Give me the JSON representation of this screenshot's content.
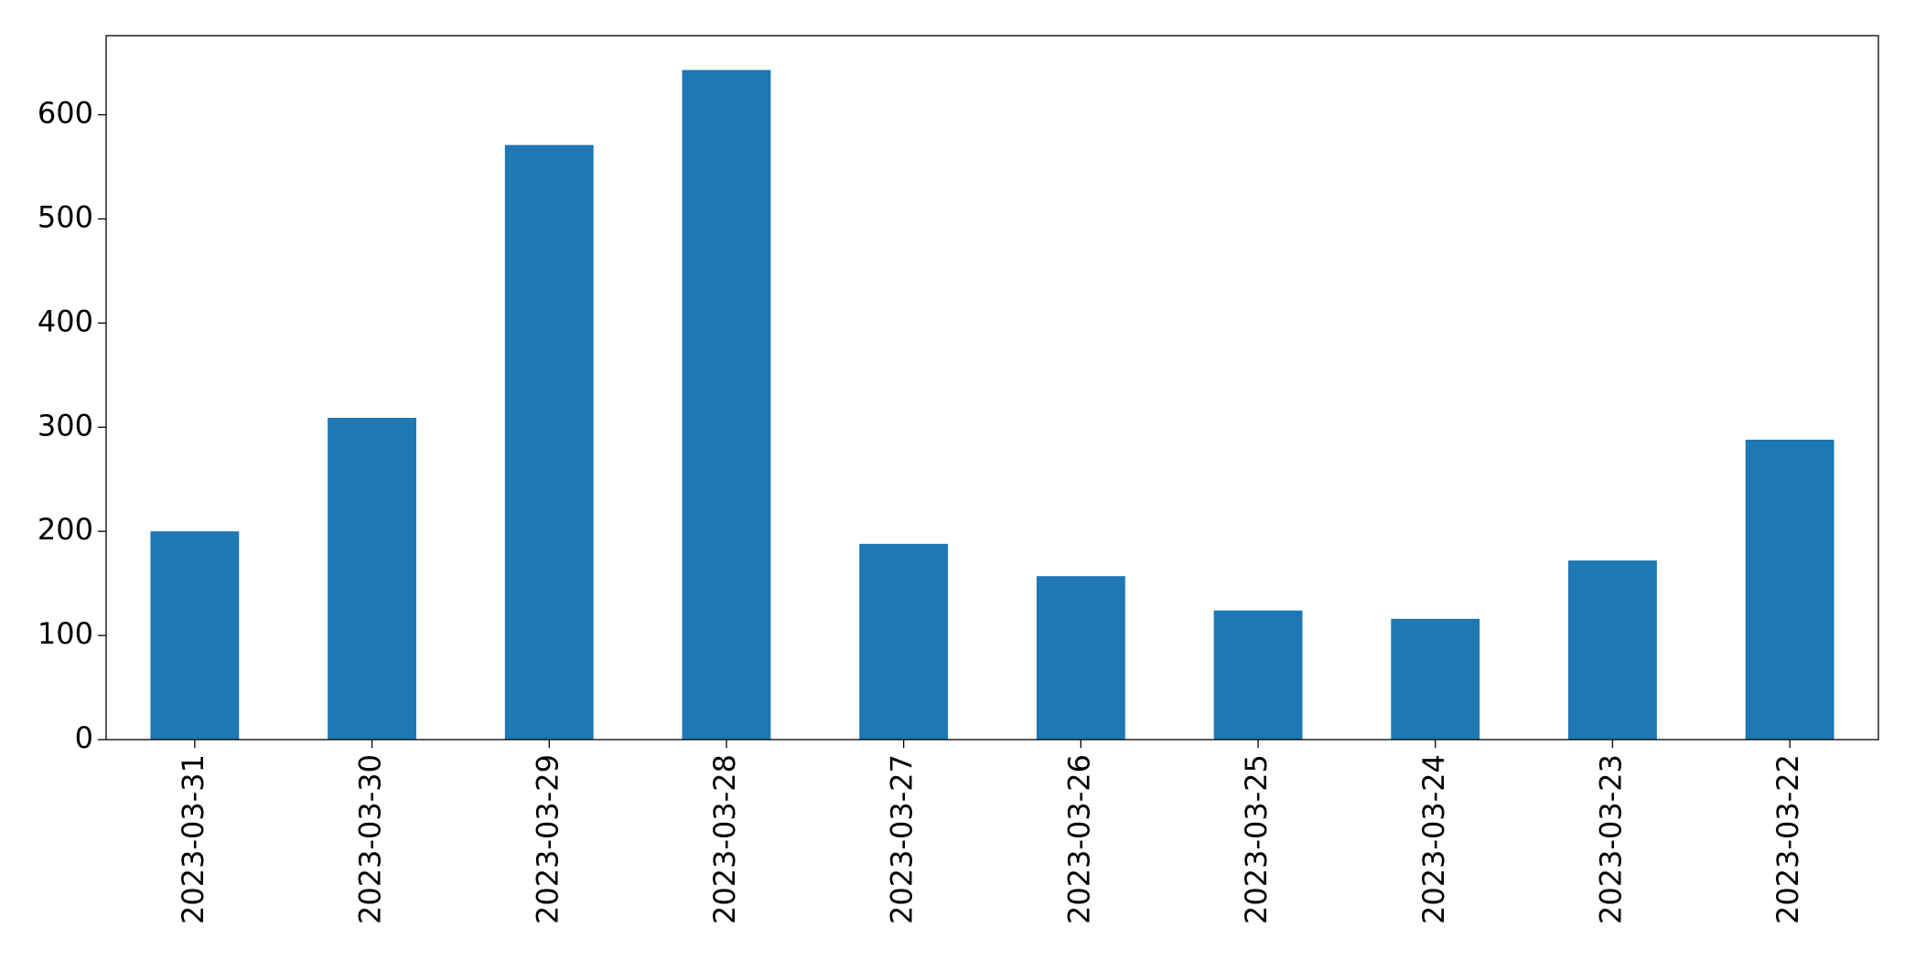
{
  "chart_data": {
    "type": "bar",
    "categories": [
      "2023-03-31",
      "2023-03-30",
      "2023-03-29",
      "2023-03-28",
      "2023-03-27",
      "2023-03-26",
      "2023-03-25",
      "2023-03-24",
      "2023-03-23",
      "2023-03-22"
    ],
    "values": [
      200,
      309,
      571,
      643,
      188,
      157,
      124,
      116,
      172,
      288
    ],
    "color": "#1f77b4",
    "ylim": [
      0,
      676
    ],
    "yticks": [
      0,
      100,
      200,
      300,
      400,
      500,
      600
    ],
    "grid": false
  }
}
